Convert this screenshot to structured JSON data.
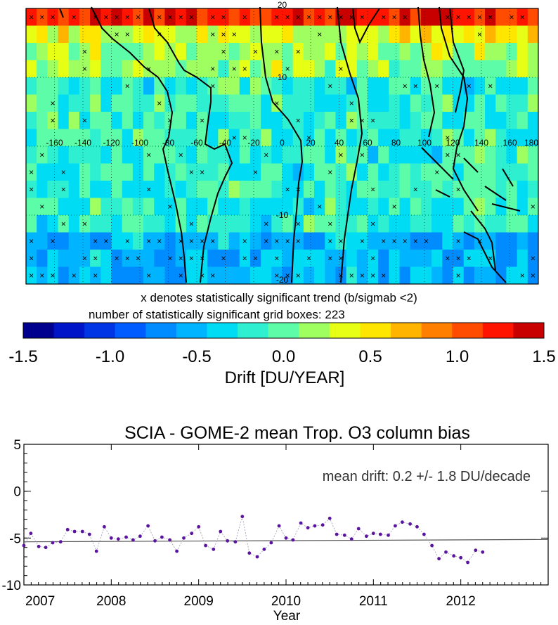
{
  "map": {
    "lon_ticks": [
      "-160",
      "-140",
      "-120",
      "-100",
      "-80",
      "-60",
      "-40",
      "-20",
      "0",
      "20",
      "40",
      "60",
      "80",
      "100",
      "120",
      "140",
      "160",
      "180"
    ],
    "lat_ticks": [
      "20",
      "10",
      "-10",
      "-20"
    ],
    "note_line1": "x denotes statistically significant trend (b/sigmab <2)",
    "note_line2": "number of statistically significant grid boxes:  223",
    "colorbar_ticks": [
      "-1.5",
      "-1.0",
      "-0.5",
      "0.0",
      "0.5",
      "1.0",
      "1.5"
    ],
    "colorbar_title": "Drift [DU/YEAR]",
    "colorbar_colors": [
      "#00008f",
      "#0014c8",
      "#0035e6",
      "#005cff",
      "#008cff",
      "#00b4ff",
      "#00dcf4",
      "#2ef0d0",
      "#5dfca8",
      "#a0ff60",
      "#e6ff14",
      "#ffe600",
      "#ffb400",
      "#ff8000",
      "#ff4c00",
      "#ff1400",
      "#c80000"
    ]
  },
  "chart_data": [
    {
      "type": "heatmap",
      "title": "",
      "xlabel": "",
      "ylabel": "",
      "x_ticks": [
        -160,
        -140,
        -120,
        -100,
        -80,
        -60,
        -40,
        -20,
        0,
        20,
        40,
        60,
        80,
        100,
        120,
        140,
        160,
        180
      ],
      "y_ticks": [
        20,
        10,
        -10,
        -20
      ],
      "xlim": [
        -180,
        180
      ],
      "ylim": [
        -20,
        20
      ],
      "color_range": [
        -1.5,
        1.5
      ],
      "colorbar_label": "Drift [DU/YEAR]",
      "significant_boxes": 223
    },
    {
      "type": "scatter",
      "title": "SCIA - GOME-2 mean  Trop. O3 column bias",
      "xlabel": "Year",
      "ylabel": "",
      "x_ticks": [
        "2007",
        "2008",
        "2009",
        "2010",
        "2011",
        "2012"
      ],
      "y_ticks": [
        "5",
        "0",
        "-5",
        "-10"
      ],
      "xlim": [
        2007,
        2013
      ],
      "ylim": [
        -10,
        5
      ],
      "annotation": "mean drift: 0.2 +/- 1.8 DU/decade",
      "trend_line": {
        "y_start": -5.4,
        "y_end": -5.15
      },
      "series": [
        {
          "x": [
            2007.0,
            2007.08,
            2007.17,
            2007.25,
            2007.33,
            2007.42,
            2007.5,
            2007.58,
            2007.67,
            2007.75,
            2007.83,
            2007.92,
            2008.0,
            2008.08,
            2008.17,
            2008.25,
            2008.33,
            2008.42,
            2008.5,
            2008.58,
            2008.67,
            2008.75,
            2008.83,
            2008.92,
            2009.0,
            2009.08,
            2009.17,
            2009.25,
            2009.33,
            2009.42,
            2009.5,
            2009.58,
            2009.67,
            2009.75,
            2009.83,
            2009.92,
            2010.0,
            2010.08,
            2010.17,
            2010.25,
            2010.33,
            2010.42,
            2010.5,
            2010.58,
            2010.67,
            2010.75,
            2010.83,
            2010.92,
            2011.0,
            2011.08,
            2011.17,
            2011.25,
            2011.33,
            2011.42,
            2011.5,
            2011.58,
            2011.67,
            2011.75,
            2011.83,
            2011.92,
            2012.0,
            2012.08,
            2012.17,
            2012.25
          ],
          "y": [
            -5.8,
            -4.5,
            -5.9,
            -6.0,
            -5.5,
            -5.4,
            -4.1,
            -4.3,
            -4.3,
            -4.6,
            -6.4,
            -3.8,
            -5.0,
            -5.1,
            -4.9,
            -5.2,
            -4.8,
            -3.7,
            -5.3,
            -4.9,
            -5.2,
            -6.4,
            -5.0,
            -4.5,
            -3.8,
            -5.8,
            -6.2,
            -4.3,
            -5.3,
            -5.4,
            -2.7,
            -6.6,
            -7.0,
            -6.2,
            -5.5,
            -3.7,
            -5.0,
            -5.2,
            -3.4,
            -3.9,
            -3.7,
            -3.6,
            -2.9,
            -4.6,
            -4.7,
            -5.1,
            -4.0,
            -4.8,
            -4.5,
            -4.6,
            -4.7,
            -3.7,
            -3.3,
            -3.5,
            -3.8,
            -4.6,
            -5.8,
            -7.2,
            -6.5,
            -6.9,
            -7.1,
            -7.6,
            -6.3,
            -6.5
          ]
        }
      ]
    }
  ]
}
